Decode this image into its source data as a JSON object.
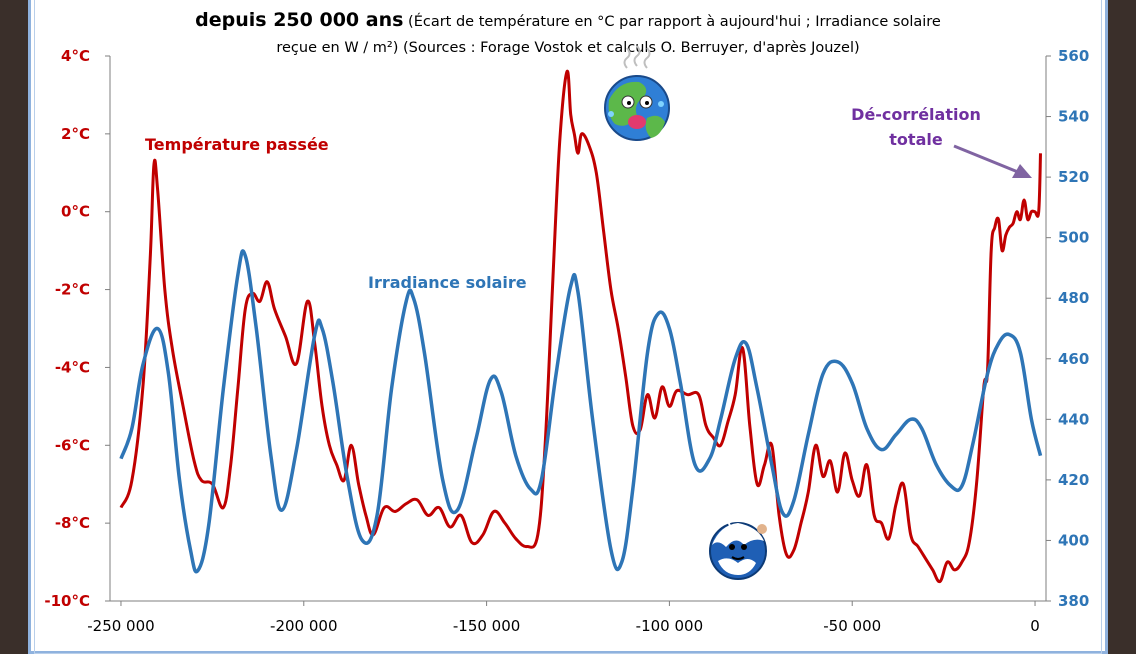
{
  "chart_data": {
    "type": "line",
    "title_bold": "depuis 250 000 ans",
    "title_rest": " (Écart de température en °C par rapport à aujourd'hui ; Irradiance solaire",
    "title_line2": "reçue en W / m²) (Sources : Forage Vostok et calculs O. Berruyer, d'après Jouzel)",
    "x_ticks": [
      "-250 000",
      "-200 000",
      "-150 000",
      "-100 000",
      "-50 000",
      "0"
    ],
    "x_tick_values": [
      -250000,
      -200000,
      -150000,
      -100000,
      -50000,
      0
    ],
    "xlim": [
      -253000,
      3000
    ],
    "y_left_ticks": [
      "4°C",
      "2°C",
      "0°C",
      "-2°C",
      "-4°C",
      "-6°C",
      "-8°C",
      "-10°C"
    ],
    "y_left_values": [
      4,
      2,
      0,
      -2,
      -4,
      -6,
      -8,
      -10
    ],
    "ylim_left": [
      -10,
      4
    ],
    "y_right_ticks": [
      "560",
      "540",
      "520",
      "500",
      "480",
      "460",
      "440",
      "420",
      "400",
      "380"
    ],
    "y_right_values": [
      560,
      540,
      520,
      500,
      480,
      460,
      440,
      420,
      400,
      380
    ],
    "ylim_right": [
      380,
      560
    ],
    "series": [
      {
        "name": "Température passée",
        "axis": "left",
        "color": "#c00000",
        "points": [
          [
            -250000,
            -7.6
          ],
          [
            -247000,
            -6.9
          ],
          [
            -244000,
            -4.5
          ],
          [
            -242000,
            -1.2
          ],
          [
            -241000,
            1.2
          ],
          [
            -240000,
            0.6
          ],
          [
            -238000,
            -2.0
          ],
          [
            -236000,
            -3.5
          ],
          [
            -233000,
            -5.0
          ],
          [
            -230000,
            -6.4
          ],
          [
            -228000,
            -6.9
          ],
          [
            -225000,
            -7.0
          ],
          [
            -222000,
            -7.6
          ],
          [
            -220000,
            -6.5
          ],
          [
            -218000,
            -4.5
          ],
          [
            -216000,
            -2.5
          ],
          [
            -214000,
            -2.1
          ],
          [
            -212000,
            -2.3
          ],
          [
            -210000,
            -1.8
          ],
          [
            -208000,
            -2.5
          ],
          [
            -205000,
            -3.2
          ],
          [
            -202000,
            -3.9
          ],
          [
            -199000,
            -2.3
          ],
          [
            -197000,
            -3.4
          ],
          [
            -195000,
            -5.0
          ],
          [
            -193000,
            -6.0
          ],
          [
            -191000,
            -6.5
          ],
          [
            -189000,
            -6.9
          ],
          [
            -187000,
            -6.0
          ],
          [
            -185000,
            -7.0
          ],
          [
            -183000,
            -7.8
          ],
          [
            -181000,
            -8.3
          ],
          [
            -178000,
            -7.6
          ],
          [
            -175000,
            -7.7
          ],
          [
            -172000,
            -7.5
          ],
          [
            -169000,
            -7.4
          ],
          [
            -166000,
            -7.8
          ],
          [
            -163000,
            -7.6
          ],
          [
            -160000,
            -8.1
          ],
          [
            -157000,
            -7.8
          ],
          [
            -154000,
            -8.5
          ],
          [
            -151000,
            -8.3
          ],
          [
            -148000,
            -7.7
          ],
          [
            -145000,
            -8.0
          ],
          [
            -142000,
            -8.4
          ],
          [
            -139000,
            -8.6
          ],
          [
            -136000,
            -8.3
          ],
          [
            -134000,
            -6.0
          ],
          [
            -132000,
            -2.0
          ],
          [
            -130000,
            1.8
          ],
          [
            -128000,
            3.6
          ],
          [
            -127000,
            2.5
          ],
          [
            -126000,
            2.0
          ],
          [
            -125000,
            1.5
          ],
          [
            -124000,
            2.0
          ],
          [
            -122000,
            1.7
          ],
          [
            -120000,
            1.0
          ],
          [
            -118000,
            -0.5
          ],
          [
            -116000,
            -2.0
          ],
          [
            -114000,
            -3.0
          ],
          [
            -112000,
            -4.2
          ],
          [
            -110000,
            -5.5
          ],
          [
            -108000,
            -5.6
          ],
          [
            -106000,
            -4.7
          ],
          [
            -104000,
            -5.3
          ],
          [
            -102000,
            -4.5
          ],
          [
            -100000,
            -5.0
          ],
          [
            -98000,
            -4.6
          ],
          [
            -95000,
            -4.7
          ],
          [
            -92000,
            -4.7
          ],
          [
            -90000,
            -5.5
          ],
          [
            -88000,
            -5.8
          ],
          [
            -86000,
            -6.0
          ],
          [
            -84000,
            -5.4
          ],
          [
            -82000,
            -4.7
          ],
          [
            -80000,
            -3.5
          ],
          [
            -78000,
            -5.5
          ],
          [
            -76000,
            -7.0
          ],
          [
            -74000,
            -6.5
          ],
          [
            -72000,
            -6.0
          ],
          [
            -70000,
            -7.8
          ],
          [
            -68000,
            -8.8
          ],
          [
            -66000,
            -8.7
          ],
          [
            -64000,
            -8.0
          ],
          [
            -62000,
            -7.2
          ],
          [
            -60000,
            -6.0
          ],
          [
            -58000,
            -6.8
          ],
          [
            -56000,
            -6.4
          ],
          [
            -54000,
            -7.2
          ],
          [
            -52000,
            -6.2
          ],
          [
            -50000,
            -6.9
          ],
          [
            -48000,
            -7.3
          ],
          [
            -46000,
            -6.5
          ],
          [
            -44000,
            -7.8
          ],
          [
            -42000,
            -8.0
          ],
          [
            -40000,
            -8.4
          ],
          [
            -38000,
            -7.5
          ],
          [
            -36000,
            -7.0
          ],
          [
            -34000,
            -8.3
          ],
          [
            -32000,
            -8.6
          ],
          [
            -30000,
            -8.9
          ],
          [
            -28000,
            -9.2
          ],
          [
            -26000,
            -9.5
          ],
          [
            -24000,
            -9.0
          ],
          [
            -22000,
            -9.2
          ],
          [
            -20000,
            -9.0
          ],
          [
            -18000,
            -8.5
          ],
          [
            -16000,
            -7.0
          ],
          [
            -14000,
            -4.5
          ],
          [
            -13000,
            -4.1
          ],
          [
            -12000,
            -1.0
          ],
          [
            -11000,
            -0.4
          ],
          [
            -10000,
            -0.2
          ],
          [
            -9000,
            -1.0
          ],
          [
            -8000,
            -0.6
          ],
          [
            -7000,
            -0.4
          ],
          [
            -6000,
            -0.3
          ],
          [
            -5000,
            0.0
          ],
          [
            -4000,
            -0.2
          ],
          [
            -3000,
            0.3
          ],
          [
            -2000,
            -0.2
          ],
          [
            -1000,
            0.0
          ],
          [
            0,
            0.0
          ],
          [
            1000,
            0.0
          ],
          [
            1500,
            1.5
          ]
        ]
      },
      {
        "name": "Irradiance solaire",
        "axis": "right",
        "color": "#2e75b6",
        "points": [
          [
            -250000,
            427
          ],
          [
            -247000,
            437
          ],
          [
            -244000,
            458
          ],
          [
            -240000,
            470
          ],
          [
            -237000,
            455
          ],
          [
            -234000,
            420
          ],
          [
            -231000,
            397
          ],
          [
            -229000,
            390
          ],
          [
            -226000,
            405
          ],
          [
            -222000,
            450
          ],
          [
            -218000,
            488
          ],
          [
            -216000,
            494
          ],
          [
            -213000,
            470
          ],
          [
            -209000,
            428
          ],
          [
            -206000,
            410
          ],
          [
            -202000,
            430
          ],
          [
            -197000,
            468
          ],
          [
            -195000,
            470
          ],
          [
            -192000,
            452
          ],
          [
            -188000,
            420
          ],
          [
            -184000,
            400
          ],
          [
            -180000,
            408
          ],
          [
            -176000,
            450
          ],
          [
            -172000,
            479
          ],
          [
            -170000,
            480
          ],
          [
            -167000,
            462
          ],
          [
            -162000,
            420
          ],
          [
            -158000,
            410
          ],
          [
            -153000,
            433
          ],
          [
            -149000,
            453
          ],
          [
            -146000,
            449
          ],
          [
            -142000,
            428
          ],
          [
            -138000,
            417
          ],
          [
            -135000,
            420
          ],
          [
            -131000,
            455
          ],
          [
            -127000,
            484
          ],
          [
            -125000,
            482
          ],
          [
            -121000,
            440
          ],
          [
            -116000,
            397
          ],
          [
            -113000,
            393
          ],
          [
            -110000,
            417
          ],
          [
            -106000,
            462
          ],
          [
            -103000,
            475
          ],
          [
            -100000,
            470
          ],
          [
            -97000,
            452
          ],
          [
            -93000,
            425
          ],
          [
            -89000,
            427
          ],
          [
            -86000,
            440
          ],
          [
            -82000,
            460
          ],
          [
            -79000,
            465
          ],
          [
            -76000,
            450
          ],
          [
            -72000,
            425
          ],
          [
            -69000,
            409
          ],
          [
            -66000,
            413
          ],
          [
            -62000,
            435
          ],
          [
            -58000,
            455
          ],
          [
            -54000,
            459
          ],
          [
            -50000,
            452
          ],
          [
            -46000,
            437
          ],
          [
            -42000,
            430
          ],
          [
            -38000,
            435
          ],
          [
            -34000,
            440
          ],
          [
            -31000,
            437
          ],
          [
            -27000,
            425
          ],
          [
            -23000,
            418
          ],
          [
            -20000,
            418
          ],
          [
            -17000,
            432
          ],
          [
            -13000,
            455
          ],
          [
            -10000,
            465
          ],
          [
            -7000,
            468
          ],
          [
            -4000,
            462
          ],
          [
            -1000,
            440
          ],
          [
            1500,
            428
          ]
        ]
      }
    ],
    "labels": {
      "temperature": "Température passée",
      "irradiance": "Irradiance solaire",
      "annotation_line1": "Dé-corrélation",
      "annotation_line2": "totale"
    },
    "annotation_color": "#7030a0",
    "grid": false
  }
}
